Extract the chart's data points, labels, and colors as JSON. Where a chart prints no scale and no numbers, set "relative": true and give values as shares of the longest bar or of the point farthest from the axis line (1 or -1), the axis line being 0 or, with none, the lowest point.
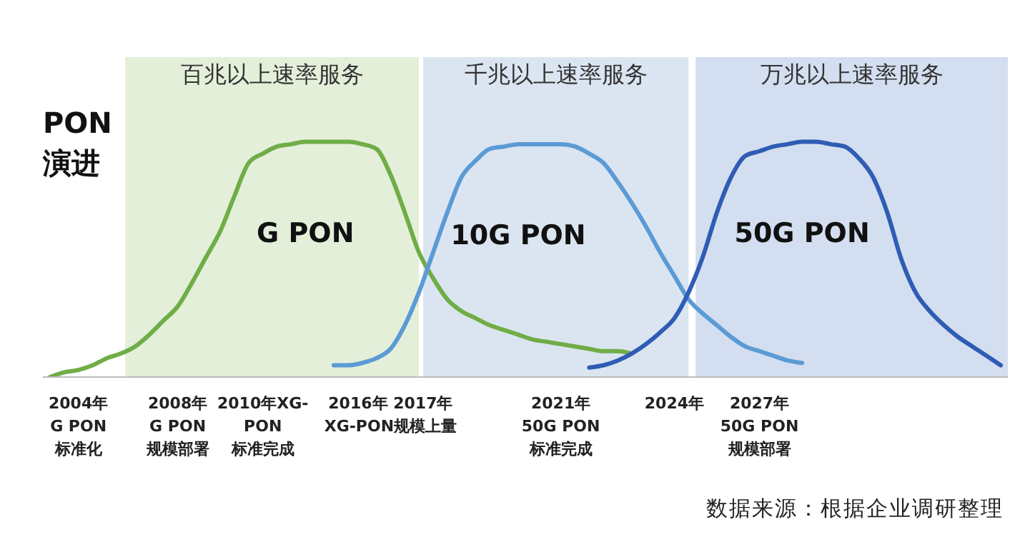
{
  "chart_data": {
    "type": "line",
    "ylabel": "PON演进",
    "relative": true,
    "marker": "none",
    "categories": [
      null,
      null,
      "2004年\nG PON\n标准化",
      null,
      null,
      null,
      null,
      null,
      null,
      "2008年\nG PON\n规模部署",
      null,
      null,
      null,
      null,
      null,
      "2010年XG-\nPON\n标准完成",
      null,
      null,
      null,
      null,
      null,
      null,
      null,
      null,
      "2016年 2017年\nXG-PON规模上量",
      null,
      null,
      null,
      null,
      null,
      null,
      null,
      null,
      null,
      null,
      null,
      "2021年\n50G PON\n标准完成",
      null,
      null,
      null,
      null,
      null,
      null,
      null,
      "2024年",
      null,
      null,
      null,
      null,
      null,
      "2027年\n50G PON\n规模部署",
      null,
      null,
      null,
      null,
      null,
      null,
      null,
      null,
      null,
      null,
      null,
      null,
      null,
      null,
      null,
      null,
      null
    ],
    "series": [
      {
        "name": "G PON",
        "color": "#70ad47",
        "values": [
          0,
          0.02,
          0.03,
          0.05,
          0.08,
          0.1,
          0.13,
          0.18,
          0.24,
          0.3,
          0.4,
          0.51,
          0.62,
          0.77,
          0.91,
          0.95,
          0.98,
          0.99,
          1,
          1,
          1,
          1,
          0.99,
          0.97,
          0.86,
          0.7,
          0.53,
          0.42,
          0.33,
          0.28,
          0.25,
          0.22,
          0.2,
          0.18,
          0.16,
          0.15,
          0.14,
          0.13,
          0.12,
          0.11,
          0.11,
          0.1,
          null,
          null,
          null,
          null,
          null,
          null,
          null,
          null,
          null,
          null,
          null,
          null,
          null,
          null,
          null,
          null,
          null,
          null,
          null,
          null,
          null,
          null,
          null,
          null,
          null,
          null
        ]
      },
      {
        "name": "10G PON",
        "color": "#5b9bd5",
        "values": [
          null,
          null,
          null,
          null,
          null,
          null,
          null,
          null,
          null,
          null,
          null,
          null,
          null,
          null,
          null,
          null,
          null,
          null,
          null,
          null,
          0.05,
          0.05,
          0.06,
          0.08,
          0.12,
          0.22,
          0.36,
          0.53,
          0.7,
          0.85,
          0.92,
          0.97,
          0.98,
          0.99,
          0.99,
          0.99,
          0.99,
          0.98,
          0.95,
          0.91,
          0.83,
          0.74,
          0.64,
          0.53,
          0.43,
          0.33,
          0.27,
          0.22,
          0.17,
          0.13,
          0.11,
          0.09,
          0.07,
          0.06,
          null,
          null,
          null,
          null,
          null,
          null,
          null,
          null,
          null,
          null,
          null,
          null,
          null,
          null
        ]
      },
      {
        "name": "50G PON",
        "color": "#2f5cb4",
        "values": [
          null,
          null,
          null,
          null,
          null,
          null,
          null,
          null,
          null,
          null,
          null,
          null,
          null,
          null,
          null,
          null,
          null,
          null,
          null,
          null,
          null,
          null,
          null,
          null,
          null,
          null,
          null,
          null,
          null,
          null,
          null,
          null,
          null,
          null,
          null,
          null,
          null,
          null,
          0.04,
          0.05,
          0.07,
          0.1,
          0.14,
          0.19,
          0.25,
          0.36,
          0.51,
          0.7,
          0.85,
          0.94,
          0.96,
          0.98,
          0.99,
          1,
          1,
          0.99,
          0.98,
          0.93,
          0.85,
          0.7,
          0.5,
          0.36,
          0.28,
          0.22,
          0.17,
          0.13,
          0.09,
          0.05
        ]
      }
    ],
    "annotations": [
      "百兆以上速率服务",
      "千兆以上速率服务",
      "万兆以上速率服务",
      "数据来源：根据企业调研整理"
    ]
  }
}
